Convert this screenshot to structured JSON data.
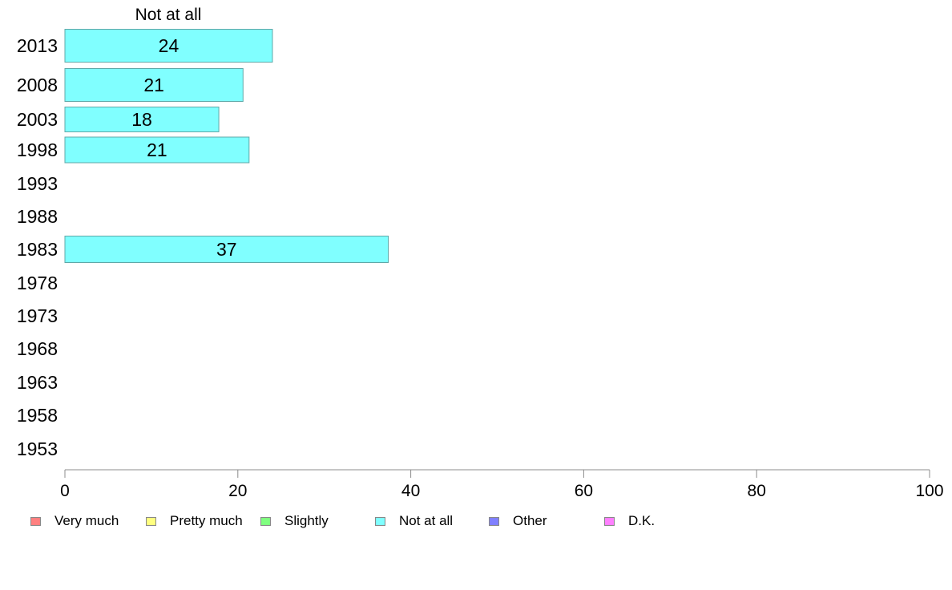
{
  "chart_data": {
    "type": "bar",
    "orientation": "horizontal",
    "title": "Not at all",
    "categories": [
      "2013",
      "2008",
      "2003",
      "1998",
      "1993",
      "1988",
      "1983",
      "1978",
      "1973",
      "1968",
      "1963",
      "1958",
      "1953"
    ],
    "series": [
      {
        "name": "Not at all",
        "color": "#80ffff",
        "values": [
          24,
          20.6,
          17.8,
          21.3,
          null,
          null,
          37.4,
          null,
          null,
          null,
          null,
          null,
          null
        ],
        "labels": [
          "24",
          "21",
          "18",
          "21",
          "",
          "",
          "37",
          "",
          "",
          "",
          "",
          "",
          ""
        ]
      }
    ],
    "xlim": [
      0,
      100
    ],
    "xticks": [
      "0",
      "20",
      "40",
      "60",
      "80",
      "100"
    ],
    "grid": false,
    "legend_position": "bottom",
    "legend": [
      {
        "label": "Very much",
        "color": "#ff8080"
      },
      {
        "label": "Pretty much",
        "color": "#ffff80"
      },
      {
        "label": "Slightly",
        "color": "#80ff80"
      },
      {
        "label": "Not at all",
        "color": "#80ffff"
      },
      {
        "label": "Other",
        "color": "#8080ff"
      },
      {
        "label": "D.K.",
        "color": "#ff80ff"
      }
    ]
  }
}
